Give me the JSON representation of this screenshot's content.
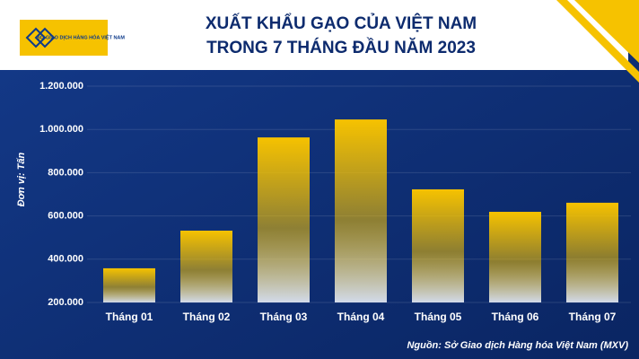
{
  "chart_data": {
    "type": "bar",
    "title": "XUẤT KHẨU GẠO CỦA VIỆT NAM",
    "subtitle": "TRONG 7 THÁNG ĐẦU NĂM 2023",
    "logo_text": "SỞ GIAO DỊCH HÀNG HÓA VIỆT NAM",
    "y_label": "Đơn vị: Tấn",
    "source": "Nguồn: Sở Giao dịch Hàng hóa Việt Nam (MXV)",
    "categories": [
      "Tháng 01",
      "Tháng 02",
      "Tháng 03",
      "Tháng 04",
      "Tháng 05",
      "Tháng 06",
      "Tháng 07"
    ],
    "values": [
      358000,
      532000,
      963000,
      1046000,
      723000,
      619000,
      661000
    ],
    "color": "#f6c200",
    "ylim": [
      200000,
      1200000
    ],
    "yticks": [
      {
        "value": 200000,
        "label": "200.000"
      },
      {
        "value": 400000,
        "label": "400.000"
      },
      {
        "value": 600000,
        "label": "600.000"
      },
      {
        "value": 800000,
        "label": "800.000"
      },
      {
        "value": 1000000,
        "label": "1.000.000"
      },
      {
        "value": 1200000,
        "label": "1.200.000"
      }
    ],
    "grid": true
  }
}
